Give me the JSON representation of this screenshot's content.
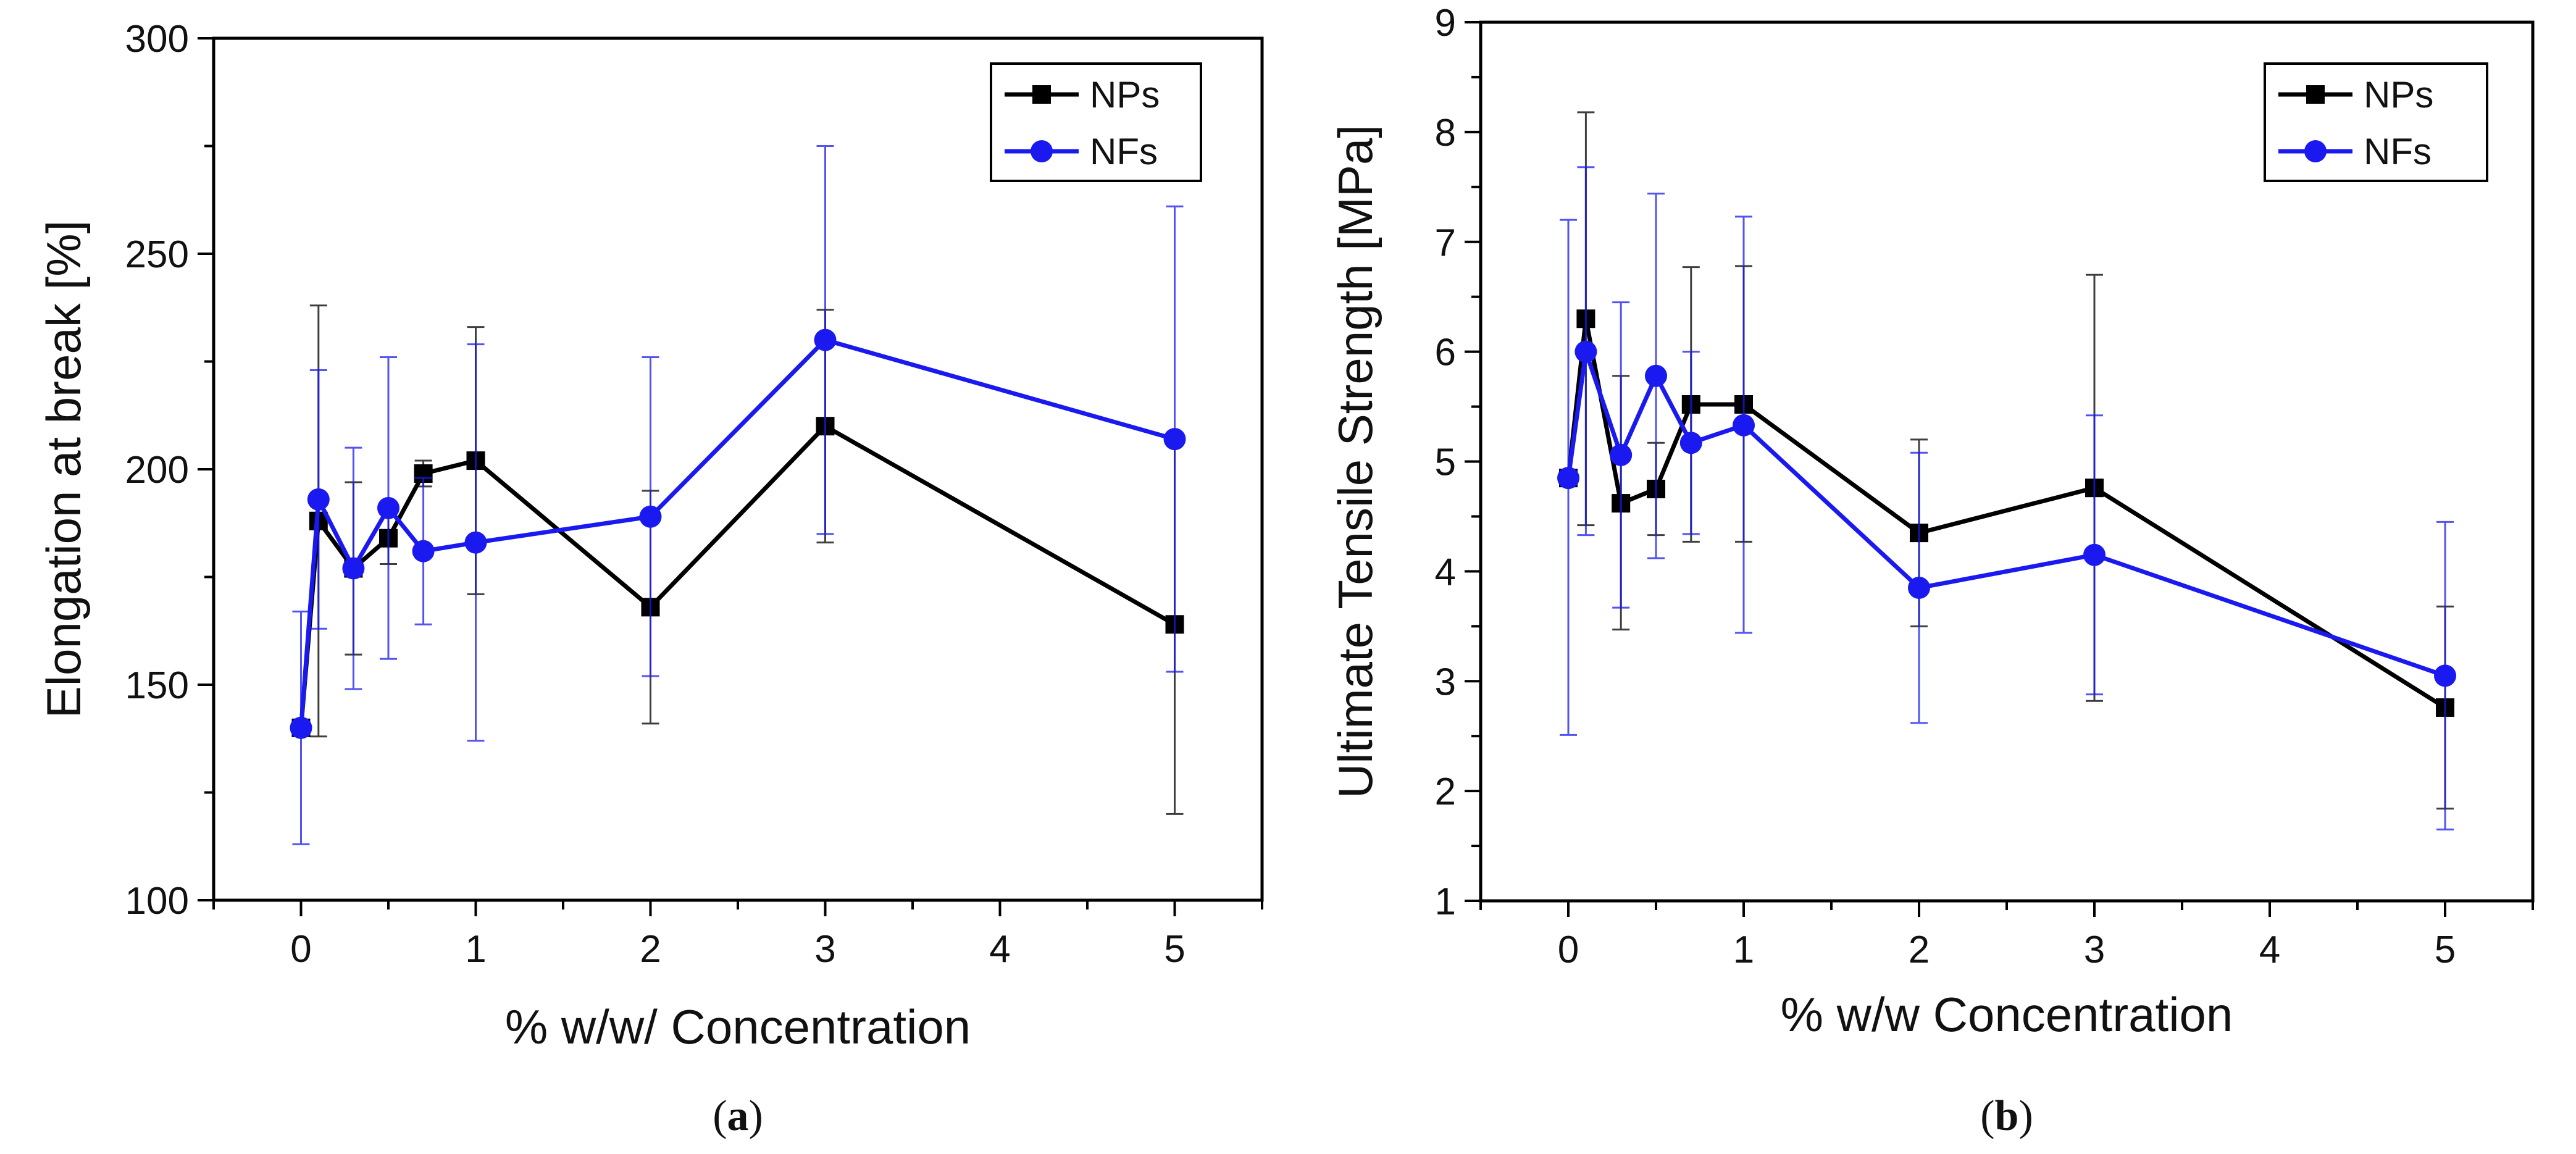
{
  "chart_data": [
    {
      "type": "line",
      "panel_label": "(a)",
      "panel_letter": "a",
      "xlabel": "% w/w/ Concentration",
      "ylabel": "Elongation at break [%]",
      "xlim": [
        -0.5,
        5.5
      ],
      "ylim": [
        100,
        300
      ],
      "x_ticks": [
        0,
        1,
        2,
        3,
        4,
        5
      ],
      "y_ticks": [
        100,
        150,
        200,
        250,
        300
      ],
      "legend_position": "top-right",
      "series": [
        {
          "name": "NPs",
          "color": "#000000",
          "marker": "square",
          "x": [
            0,
            0.1,
            0.3,
            0.5,
            0.7,
            1,
            2,
            3,
            5
          ],
          "y": [
            140,
            188,
            177,
            184,
            199,
            202,
            168,
            210,
            164
          ],
          "err_low": [
            140,
            138,
            157,
            178,
            196,
            171,
            141,
            183,
            120
          ],
          "err_high": [
            140,
            238,
            197,
            190,
            202,
            233,
            195,
            237,
            208
          ]
        },
        {
          "name": "NFs",
          "color": "#1a1af0",
          "marker": "circle",
          "x": [
            0,
            0.1,
            0.3,
            0.5,
            0.7,
            1,
            2,
            3,
            5
          ],
          "y": [
            140,
            193,
            177,
            191,
            181,
            183,
            189,
            230,
            207
          ],
          "err_low": [
            113,
            163,
            149,
            156,
            164,
            137,
            152,
            185,
            153
          ],
          "err_high": [
            167,
            223,
            205,
            226,
            198,
            229,
            226,
            275,
            261
          ]
        }
      ]
    },
    {
      "type": "line",
      "panel_label": "(b)",
      "panel_letter": "b",
      "xlabel": "% w/w Concentration",
      "ylabel": "Ultimate Tensile Strength [MPa]",
      "xlim": [
        -0.5,
        5.5
      ],
      "ylim": [
        1,
        9
      ],
      "x_ticks": [
        0,
        1,
        2,
        3,
        4,
        5
      ],
      "y_ticks": [
        1,
        2,
        3,
        4,
        5,
        6,
        7,
        8,
        9
      ],
      "legend_position": "top-right",
      "series": [
        {
          "name": "NPs",
          "color": "#000000",
          "marker": "square",
          "x": [
            0,
            0.1,
            0.3,
            0.5,
            0.7,
            1,
            2,
            3,
            5
          ],
          "y": [
            4.85,
            6.3,
            4.62,
            4.75,
            5.52,
            5.52,
            4.35,
            4.76,
            2.76
          ],
          "err_low": [
            4.85,
            4.42,
            3.47,
            4.33,
            4.27,
            4.27,
            3.5,
            2.82,
            1.84
          ],
          "err_high": [
            4.85,
            8.18,
            5.78,
            5.17,
            6.77,
            6.78,
            5.2,
            6.7,
            3.68
          ]
        },
        {
          "name": "NFs",
          "color": "#1a1af0",
          "marker": "circle",
          "x": [
            0,
            0.1,
            0.3,
            0.5,
            0.7,
            1,
            2,
            3,
            5
          ],
          "y": [
            4.85,
            6.0,
            5.06,
            5.78,
            5.17,
            5.33,
            3.85,
            4.15,
            3.05
          ],
          "err_low": [
            2.51,
            4.33,
            3.67,
            4.12,
            4.34,
            3.44,
            2.62,
            2.88,
            1.65
          ],
          "err_high": [
            7.2,
            7.68,
            6.45,
            7.44,
            6.0,
            7.23,
            5.08,
            5.42,
            4.45
          ]
        }
      ]
    }
  ]
}
